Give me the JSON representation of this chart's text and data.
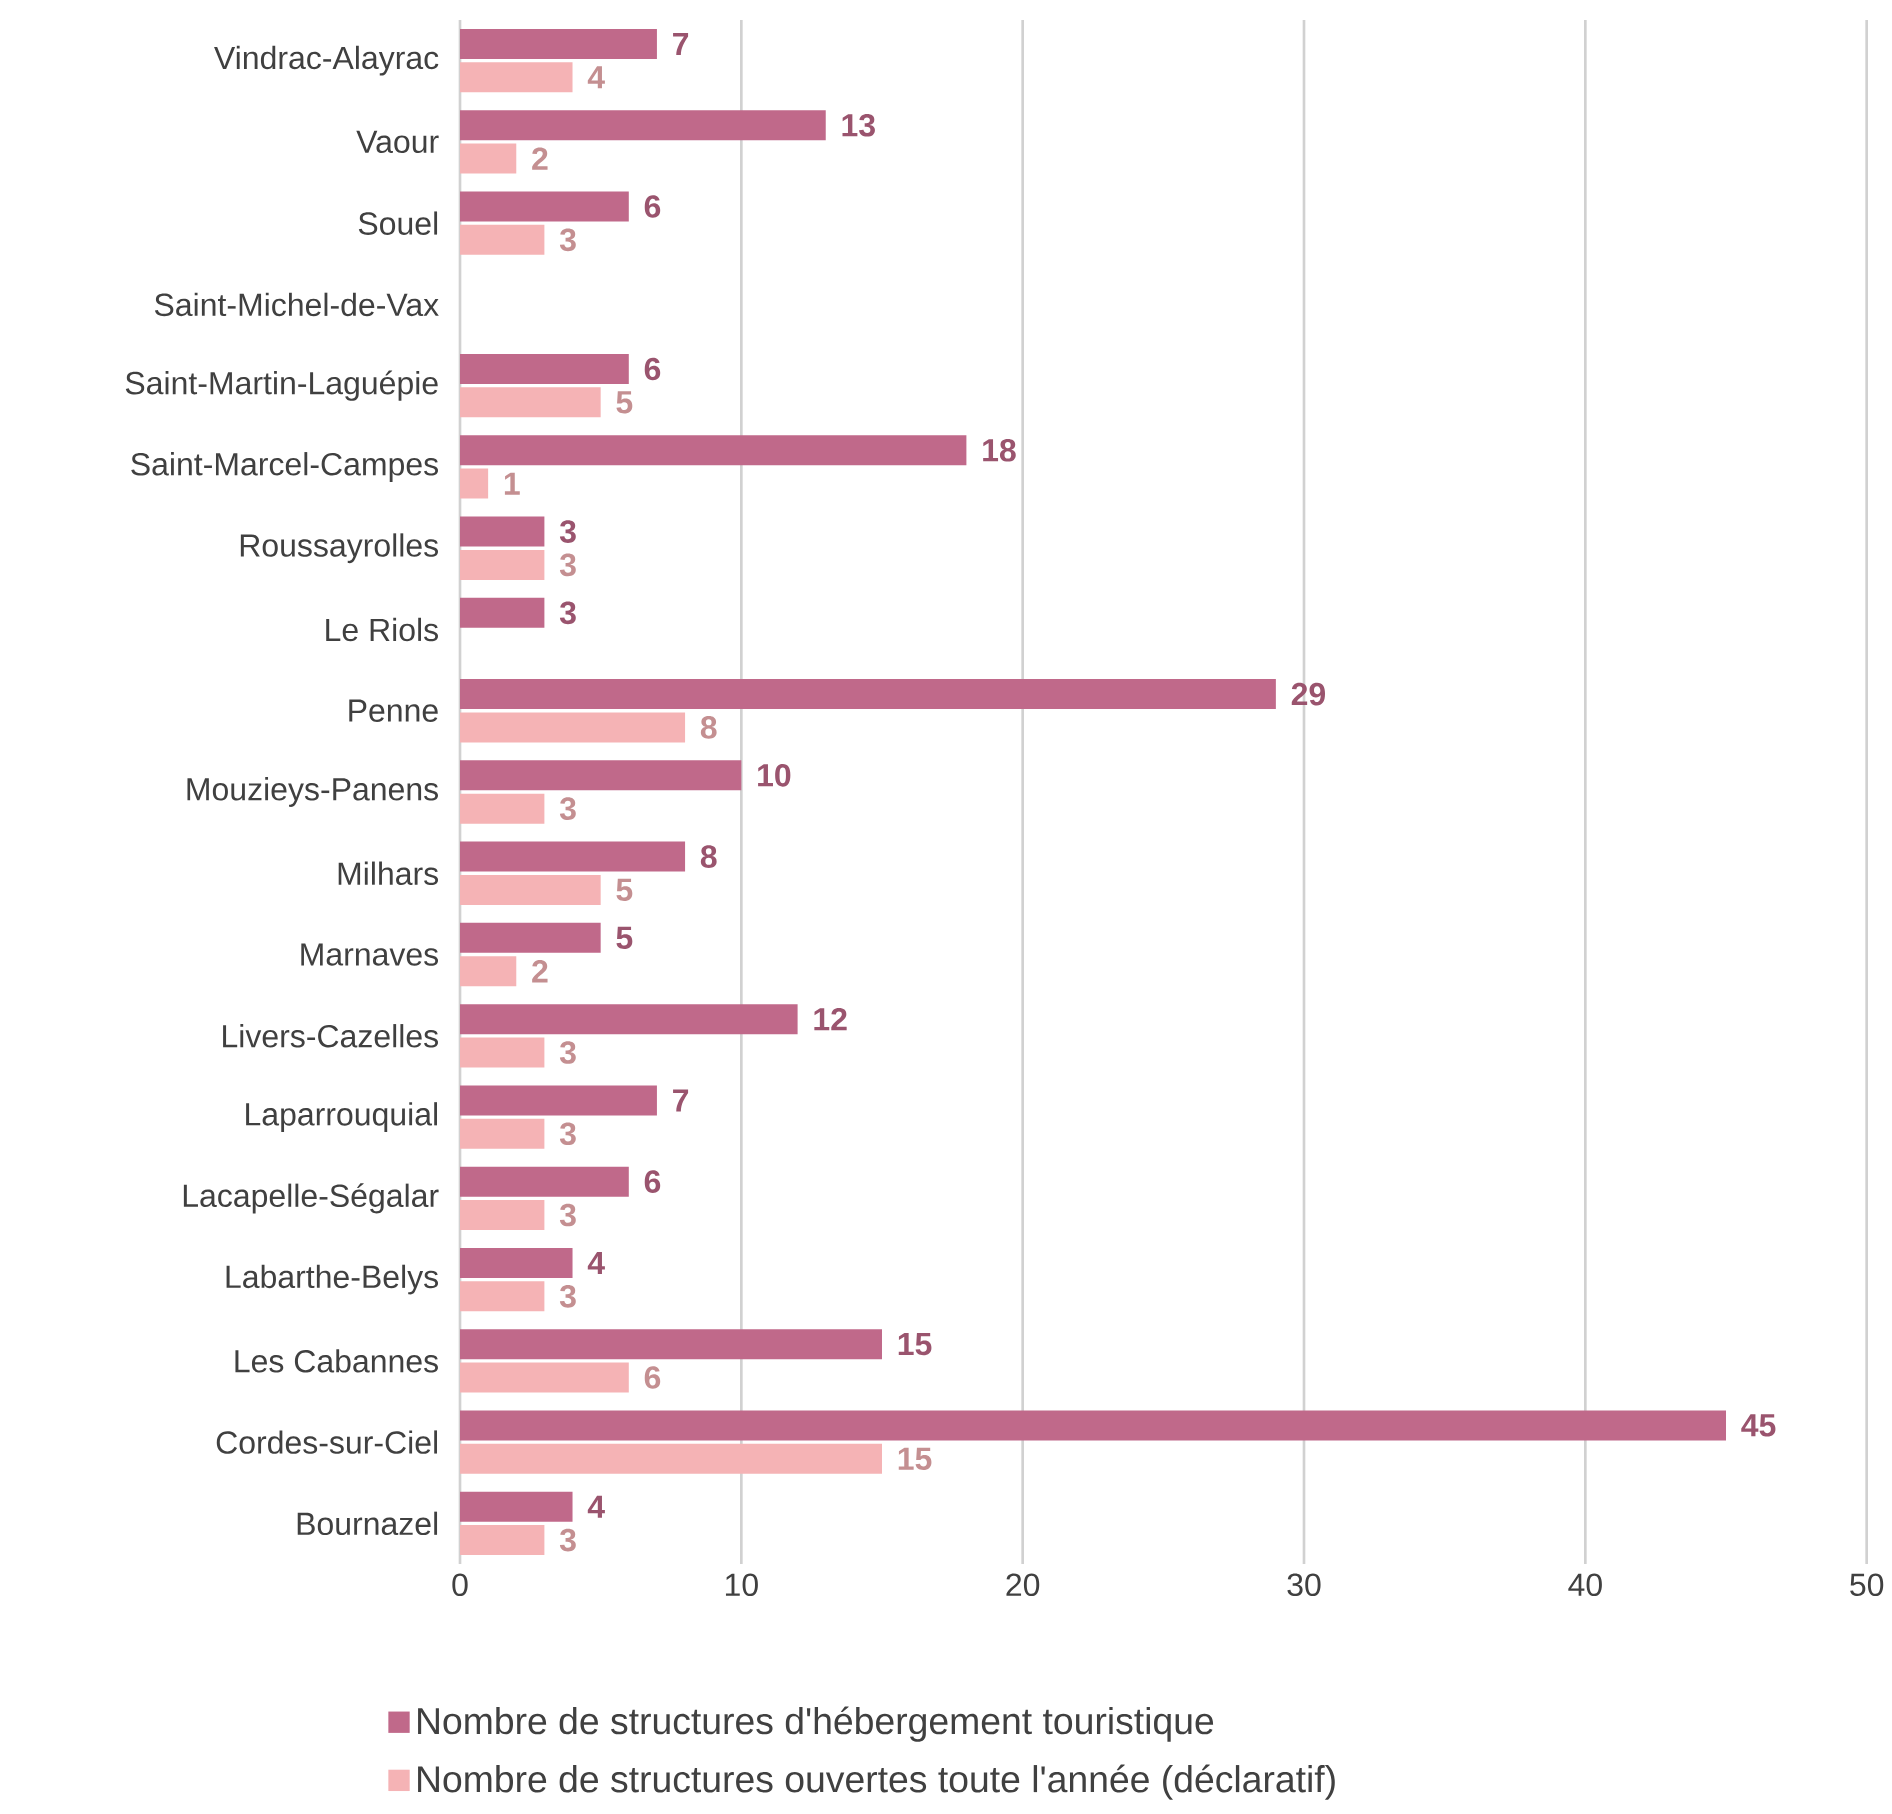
{
  "chart_data": {
    "type": "bar",
    "orientation": "horizontal",
    "categories": [
      "Vindrac-Alayrac",
      "Vaour",
      "Souel",
      "Saint-Michel-de-Vax",
      "Saint-Martin-Laguépie",
      "Saint-Marcel-Campes",
      "Roussayrolles",
      "Le Riols",
      "Penne",
      "Mouzieys-Panens",
      "Milhars",
      "Marnaves",
      "Livers-Cazelles",
      "Laparrouquial",
      "Lacapelle-Ségalar",
      "Labarthe-Belys",
      "Les Cabannes",
      "Cordes-sur-Ciel",
      "Bournazel"
    ],
    "series": [
      {
        "name": "Nombre de structures d'hébergement touristique",
        "color": "#c0698a",
        "values": [
          7,
          13,
          6,
          null,
          6,
          18,
          3,
          3,
          29,
          10,
          8,
          5,
          12,
          7,
          6,
          4,
          15,
          45,
          4
        ]
      },
      {
        "name": "Nombre de structures ouvertes toute l'année (déclaratif)",
        "color": "#f5b3b5",
        "values": [
          4,
          2,
          3,
          null,
          5,
          1,
          3,
          null,
          8,
          3,
          5,
          2,
          3,
          3,
          3,
          3,
          6,
          15,
          3
        ]
      }
    ],
    "xlim": [
      0,
      50
    ],
    "xticks": [
      0,
      10,
      20,
      30,
      40,
      50
    ],
    "grid": "x",
    "legend": "bottom",
    "data_labels": true
  }
}
